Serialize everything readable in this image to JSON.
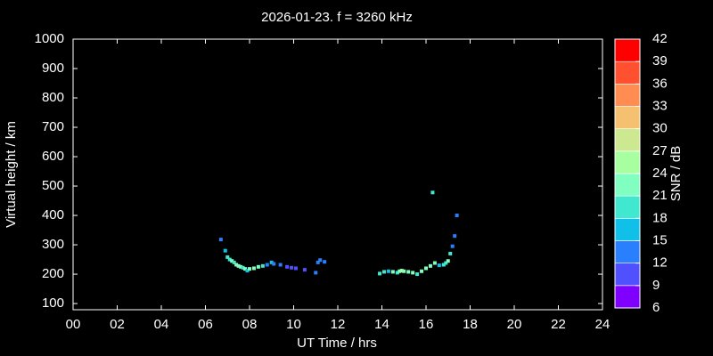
{
  "chart_data": {
    "type": "scatter",
    "title": "2026-01-23. f = 3260 kHz",
    "x_label": "UT Time / hrs",
    "y_label": "Virtual height / km",
    "colorbar_label": "SNR / dB",
    "xlim": [
      0,
      24
    ],
    "xticks": [
      {
        "value": 0,
        "label": "00"
      },
      {
        "value": 2,
        "label": "02"
      },
      {
        "value": 4,
        "label": "04"
      },
      {
        "value": 6,
        "label": "06"
      },
      {
        "value": 8,
        "label": "08"
      },
      {
        "value": 10,
        "label": "10"
      },
      {
        "value": 12,
        "label": "12"
      },
      {
        "value": 14,
        "label": "14"
      },
      {
        "value": 16,
        "label": "16"
      },
      {
        "value": 18,
        "label": "18"
      },
      {
        "value": 20,
        "label": "20"
      },
      {
        "value": 22,
        "label": "22"
      },
      {
        "value": 24,
        "label": "24"
      }
    ],
    "ylim": [
      79,
      1000
    ],
    "yticks": [
      100,
      200,
      300,
      400,
      500,
      600,
      700,
      800,
      900,
      1000
    ],
    "clim": [
      6,
      42
    ],
    "cticks": [
      6,
      9,
      12,
      15,
      18,
      21,
      24,
      27,
      30,
      33,
      36,
      39,
      42
    ],
    "colors": [
      "#8000ff",
      "#5050ff",
      "#2a7fff",
      "#10c0e8",
      "#40e8d0",
      "#80ffc0",
      "#a8ffa0",
      "#cce890",
      "#f5c070",
      "#ff8c50",
      "#ff5030",
      "#ff0000"
    ],
    "x": [
      6.7,
      6.9,
      7.0,
      7.1,
      7.2,
      7.3,
      7.4,
      7.5,
      7.6,
      7.7,
      7.8,
      7.9,
      8.0,
      8.2,
      8.4,
      8.6,
      8.8,
      9.0,
      9.1,
      9.4,
      9.7,
      9.9,
      10.1,
      10.5,
      11.0,
      11.1,
      11.2,
      11.4,
      13.9,
      14.1,
      14.3,
      14.5,
      14.7,
      14.8,
      14.9,
      15.0,
      15.2,
      15.4,
      15.6,
      15.8,
      16.0,
      16.2,
      16.3,
      16.4,
      16.6,
      16.8,
      16.9,
      17.0,
      17.1,
      17.2,
      17.3,
      17.4
    ],
    "values": [
      318,
      280,
      258,
      250,
      245,
      240,
      232,
      228,
      225,
      222,
      218,
      212,
      218,
      220,
      225,
      228,
      232,
      240,
      235,
      232,
      225,
      222,
      220,
      215,
      205,
      240,
      248,
      242,
      202,
      208,
      210,
      208,
      205,
      210,
      212,
      210,
      208,
      205,
      200,
      210,
      220,
      228,
      478,
      238,
      230,
      232,
      238,
      245,
      270,
      295,
      330,
      400
    ],
    "snr": [
      14,
      17,
      20,
      19,
      22,
      20,
      21,
      22,
      23,
      20,
      22,
      16,
      21,
      22,
      21,
      20,
      14,
      16,
      13,
      13,
      11,
      11,
      10,
      11,
      13,
      14,
      13,
      13,
      19,
      20,
      17,
      22,
      20,
      22,
      24,
      23,
      22,
      21,
      20,
      22,
      22,
      22,
      19,
      21,
      17,
      19,
      18,
      21,
      18,
      14,
      13,
      13
    ]
  }
}
